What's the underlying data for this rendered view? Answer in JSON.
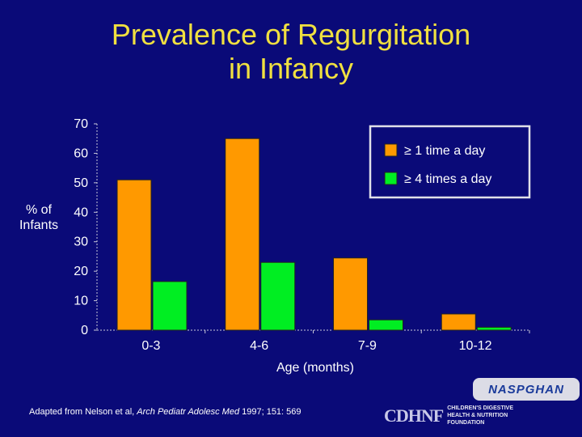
{
  "slide": {
    "title_line1": "Prevalence of Regurgitation",
    "title_line2": "in Infancy",
    "source_prefix": "Adapted from Nelson et al, ",
    "source_journal": "Arch Pediatr Adolesc Med",
    "source_suffix": " 1997; 151: 569",
    "logo_naspghan": "NASPGHAN",
    "logo_cdhnf_mark": "CDHNF",
    "logo_cdhnf_line1": "CHILDREN'S DIGESTIVE",
    "logo_cdhnf_line2": "HEALTH & NUTRITION",
    "logo_cdhnf_line3": "FOUNDATION"
  },
  "chart_data": {
    "type": "bar",
    "categories": [
      "0-3",
      "4-6",
      "7-9",
      "10-12"
    ],
    "series": [
      {
        "name": "≥ 1 time a day",
        "values": [
          51,
          65,
          24.5,
          5.5
        ],
        "color": "#ff9900"
      },
      {
        "name": "≥ 4 times a day",
        "values": [
          16.5,
          23,
          3.5,
          1
        ],
        "color": "#00ee22"
      }
    ],
    "ylabel_line1": "% of",
    "ylabel_line2": "Infants",
    "xlabel": "Age (months)",
    "ylim": [
      0,
      70
    ],
    "yticks": [
      0,
      10,
      20,
      30,
      40,
      50,
      60,
      70
    ],
    "legend_position": "top-right",
    "grid": false
  }
}
